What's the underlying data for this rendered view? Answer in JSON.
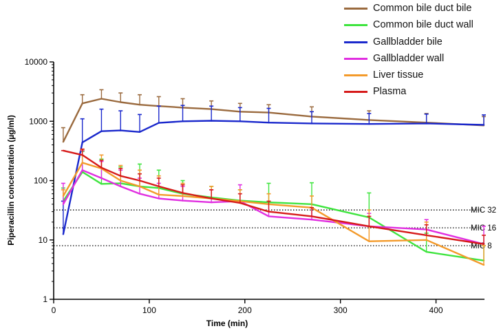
{
  "chart_data": {
    "type": "line",
    "xlabel": "Time (min)",
    "ylabel": "Piperacillin concentration (µg/ml)",
    "xlim": [
      0,
      450
    ],
    "ylim": [
      1,
      10000
    ],
    "yscale": "log",
    "x_ticks": [
      {
        "value": 0,
        "label": "0"
      },
      {
        "value": 100,
        "label": "100"
      },
      {
        "value": 200,
        "label": "200"
      },
      {
        "value": 300,
        "label": "300"
      },
      {
        "value": 400,
        "label": "400"
      }
    ],
    "y_ticks": [
      {
        "value": 1,
        "label": "1"
      },
      {
        "value": 10,
        "label": "10"
      },
      {
        "value": 100,
        "label": "100"
      },
      {
        "value": 1000,
        "label": "1000"
      },
      {
        "value": 10000,
        "label": "10000"
      }
    ],
    "reference_lines": [
      {
        "label": "MIC 32",
        "value": 32
      },
      {
        "label": "MIC 16",
        "value": 16
      },
      {
        "label": "MIC 8",
        "value": 8
      }
    ],
    "series": [
      {
        "name": "Common bile duct bile",
        "color": "#9a6a3e",
        "x": [
          10,
          30,
          50,
          70,
          90,
          110,
          135,
          165,
          195,
          225,
          270,
          330,
          390,
          450
        ],
        "y": [
          450,
          2000,
          2400,
          2100,
          1900,
          1800,
          1700,
          1600,
          1450,
          1400,
          1200,
          1050,
          950,
          850
        ],
        "err": [
          780,
          2800,
          3400,
          3000,
          2800,
          2600,
          2400,
          2200,
          2000,
          1900,
          1750,
          1500,
          1350,
          1200
        ]
      },
      {
        "name": "Common bile duct wall",
        "color": "#3ee43e",
        "x": [
          10,
          30,
          50,
          70,
          90,
          110,
          135,
          165,
          195,
          225,
          270,
          330,
          390,
          450
        ],
        "y": [
          45,
          140,
          88,
          90,
          80,
          75,
          60,
          52,
          46,
          43,
          40,
          24,
          6.3,
          4.5
        ],
        "err": [
          75,
          310,
          230,
          170,
          190,
          150,
          100,
          80,
          70,
          90,
          92,
          62,
          13,
          8
        ]
      },
      {
        "name": "Gallbladder bile",
        "color": "#1a28cc",
        "x": [
          10,
          30,
          50,
          70,
          90,
          110,
          135,
          165,
          195,
          225,
          270,
          330,
          390,
          450
        ],
        "y": [
          12.5,
          440,
          680,
          700,
          660,
          940,
          1000,
          1020,
          1000,
          950,
          920,
          900,
          920,
          870
        ],
        "err": [
          45,
          1100,
          1600,
          1500,
          1300,
          1800,
          1850,
          1800,
          1700,
          1650,
          1450,
          1350,
          1320,
          1280
        ]
      },
      {
        "name": "Gallbladder wall",
        "color": "#e02ee0",
        "x": [
          10,
          30,
          50,
          70,
          90,
          110,
          135,
          165,
          195,
          225,
          270,
          330,
          390,
          450
        ],
        "y": [
          40,
          150,
          110,
          80,
          60,
          50,
          46,
          43,
          45,
          25,
          22,
          17,
          15,
          8.5
        ],
        "err": [
          90,
          320,
          210,
          150,
          110,
          90,
          80,
          70,
          85,
          40,
          35,
          28,
          22,
          17
        ]
      },
      {
        "name": "Liver tissue",
        "color": "#f39a2a",
        "x": [
          10,
          30,
          50,
          70,
          90,
          110,
          135,
          165,
          195,
          225,
          270,
          330,
          390,
          450
        ],
        "y": [
          55,
          200,
          160,
          100,
          80,
          58,
          55,
          50,
          45,
          40,
          35,
          9.5,
          10,
          3.8
        ],
        "err": [
          70,
          330,
          270,
          180,
          150,
          120,
          90,
          80,
          70,
          60,
          55,
          32,
          20,
          8
        ]
      },
      {
        "name": "Plasma",
        "color": "#d61a1a",
        "x": [
          10,
          30,
          50,
          70,
          90,
          110,
          135,
          165,
          195,
          225,
          270,
          330,
          390,
          450
        ],
        "y": [
          320,
          270,
          165,
          120,
          100,
          80,
          62,
          50,
          42,
          30,
          25,
          17,
          12,
          8.5
        ],
        "err": [
          320,
          340,
          220,
          160,
          130,
          110,
          85,
          70,
          60,
          45,
          35,
          25,
          18,
          12
        ]
      }
    ]
  }
}
